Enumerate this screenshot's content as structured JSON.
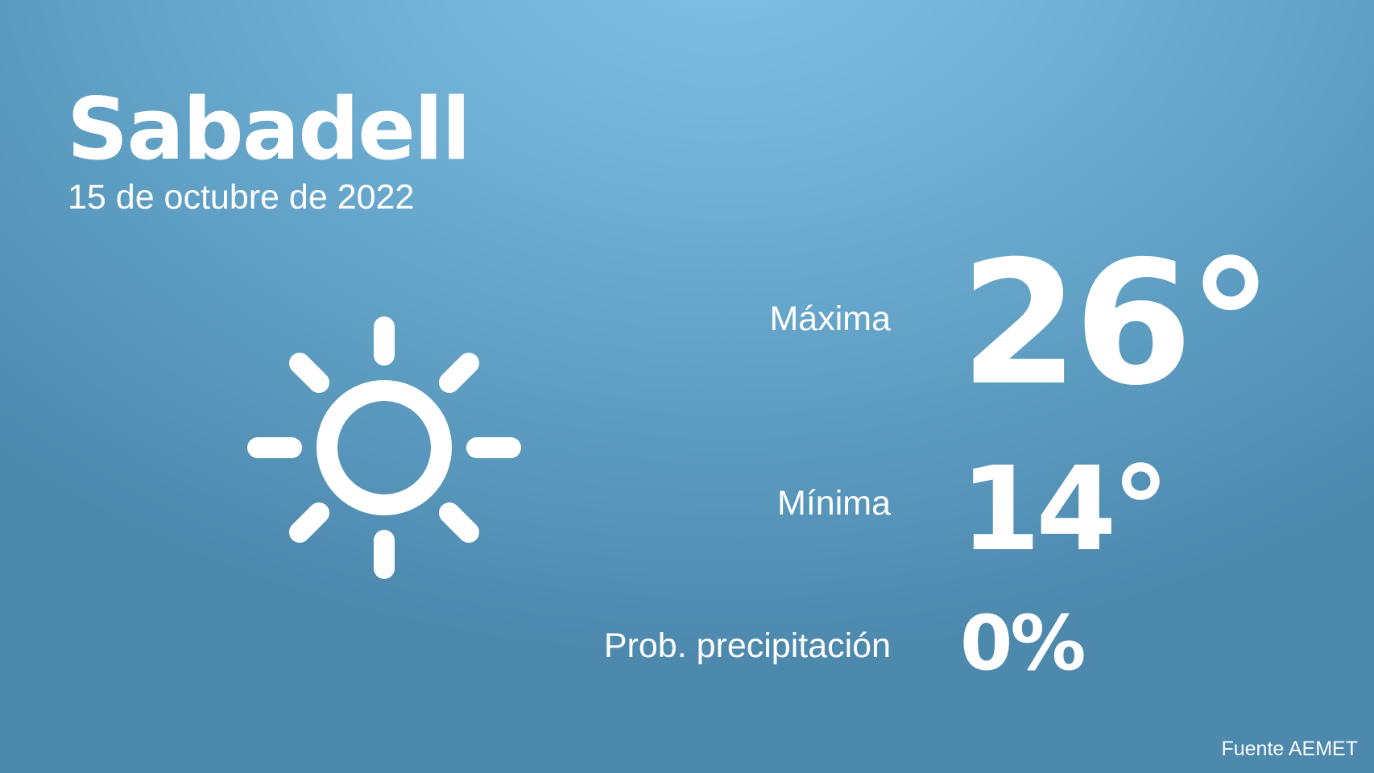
{
  "city": "Sabadell",
  "date": "15 de octubre de 2022",
  "weather_icon": "sun-icon",
  "max": {
    "label": "Máxima",
    "value": "26°"
  },
  "min": {
    "label": "Mínima",
    "value": "14°"
  },
  "precipitation": {
    "label": "Prob. precipitación",
    "value": "0%"
  },
  "source": "Fuente AEMET",
  "colors": {
    "background_top": "#80c3e6",
    "background_bottom": "#4d88ad",
    "text": "#ffffff"
  }
}
